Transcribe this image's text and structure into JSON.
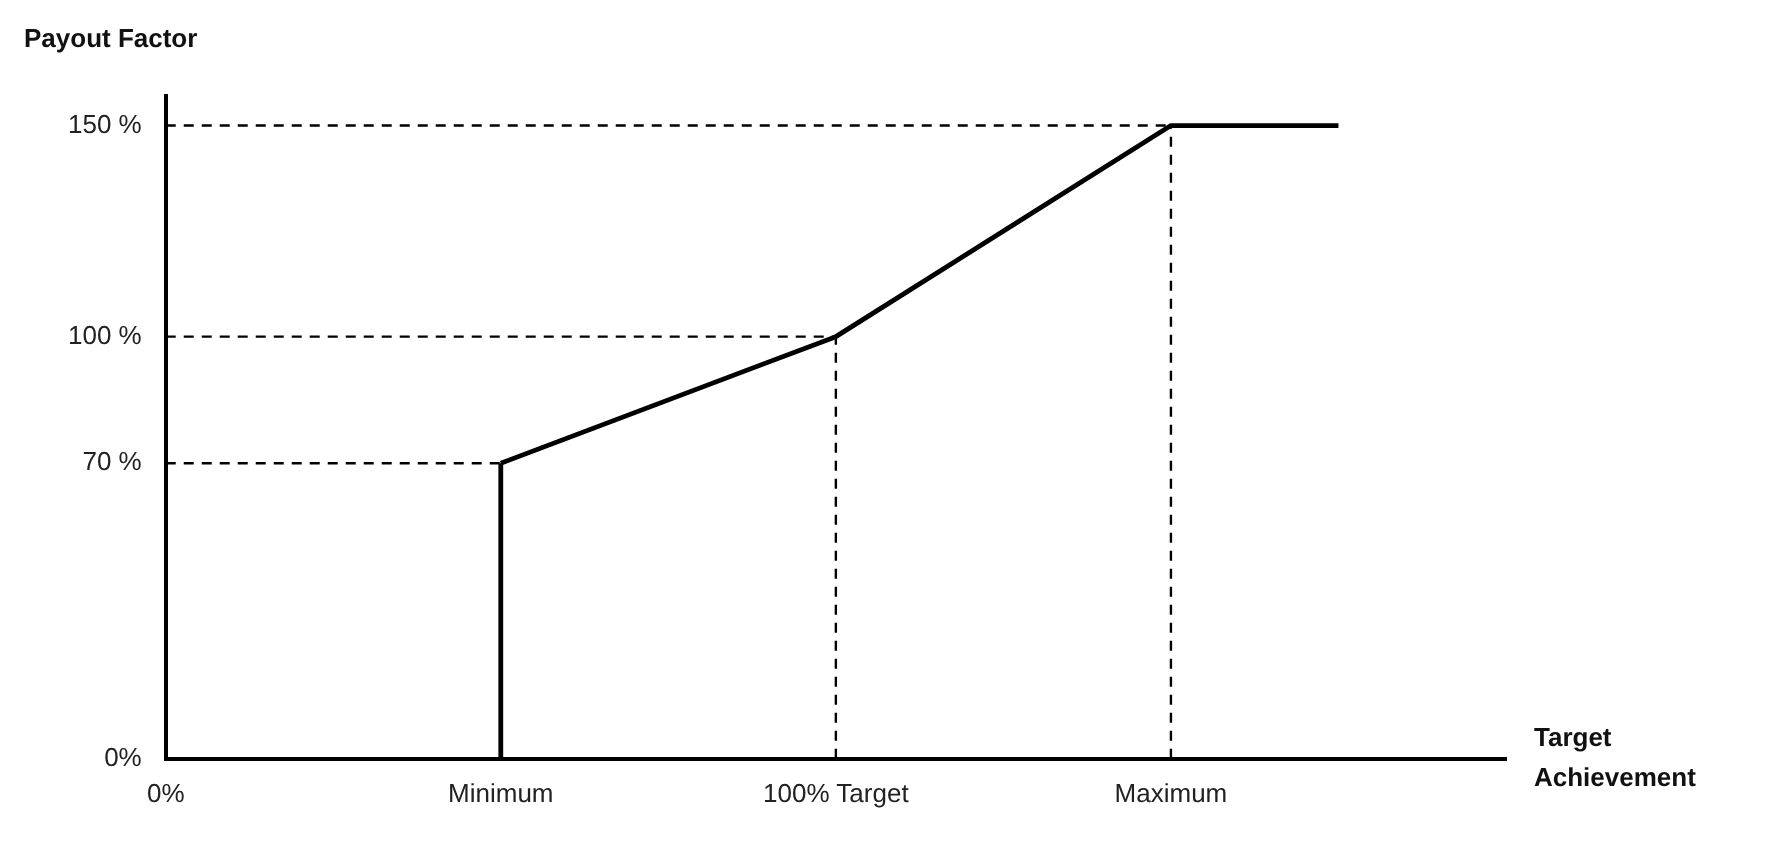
{
  "chart_data": {
    "type": "line",
    "xlabel": "Target Achievement",
    "ylabel": "Payout Factor",
    "categories": [
      "0%",
      null,
      "Minimum",
      null,
      "100% Target",
      null,
      "Maximum",
      null,
      null
    ],
    "ylim": [
      0,
      157
    ],
    "yticks": [
      {
        "value": 0,
        "label": "0%"
      },
      {
        "value": 70,
        "label": "70 %"
      },
      {
        "value": 100,
        "label": "100 %"
      },
      {
        "value": 150,
        "label": "150 %"
      }
    ],
    "grid": false,
    "legend": false,
    "marker": "none",
    "series": [
      {
        "color": "#000000",
        "line_style": "solid",
        "values": [
          null,
          null,
          70,
          null,
          100,
          null,
          150,
          150,
          null
        ]
      },
      {
        "color": "#000000",
        "line_style": "solid",
        "x": [
          "Minimum",
          "Minimum"
        ],
        "values": [
          0,
          70
        ]
      },
      {
        "color": "#000000",
        "line_style": "dashed",
        "x": [
          "0%",
          "Minimum"
        ],
        "values": [
          70,
          70
        ]
      },
      {
        "color": "#000000",
        "line_style": "dashed",
        "x": [
          "0%",
          "100% Target"
        ],
        "values": [
          100,
          100
        ]
      },
      {
        "color": "#000000",
        "line_style": "dashed",
        "x": [
          "0%",
          "Maximum"
        ],
        "values": [
          150,
          150
        ]
      },
      {
        "color": "#000000",
        "line_style": "dashed",
        "x": [
          "100% Target",
          "100% Target"
        ],
        "values": [
          0,
          100
        ]
      },
      {
        "color": "#000000",
        "line_style": "dashed",
        "x": [
          "Maximum",
          "Maximum"
        ],
        "values": [
          0,
          150
        ]
      }
    ]
  }
}
